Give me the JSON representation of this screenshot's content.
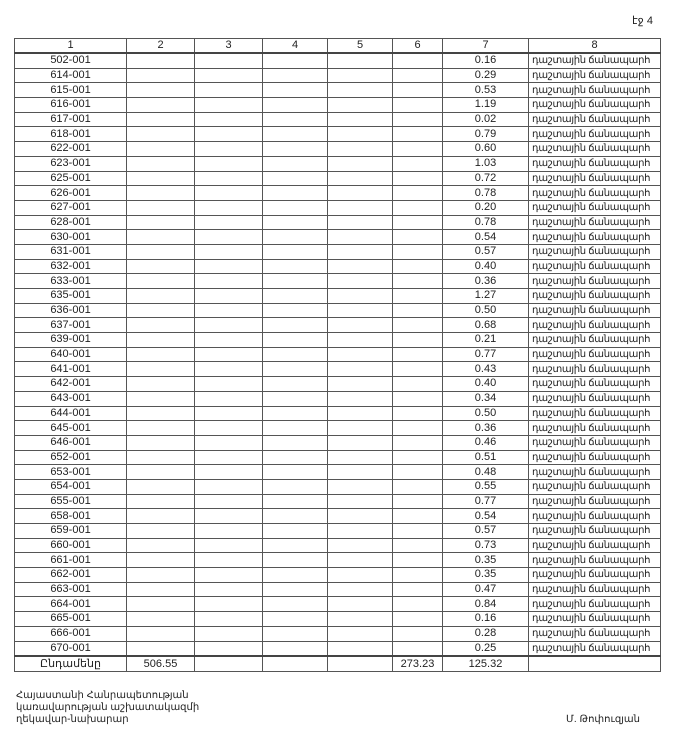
{
  "page_label": "էջ 4",
  "table": {
    "headers": [
      "1",
      "2",
      "3",
      "4",
      "5",
      "6",
      "7",
      "8"
    ],
    "rows": [
      {
        "code": "502-001",
        "area": "0.16",
        "purpose": "դաշտային ճանապարհ"
      },
      {
        "code": "614-001",
        "area": "0.29",
        "purpose": "դաշտային ճանապարհ"
      },
      {
        "code": "615-001",
        "area": "0.53",
        "purpose": "դաշտային ճանապարհ"
      },
      {
        "code": "616-001",
        "area": "1.19",
        "purpose": "դաշտային ճանապարհ"
      },
      {
        "code": "617-001",
        "area": "0.02",
        "purpose": "դաշտային ճանապարհ"
      },
      {
        "code": "618-001",
        "area": "0.79",
        "purpose": "դաշտային ճանապարհ"
      },
      {
        "code": "622-001",
        "area": "0.60",
        "purpose": "դաշտային ճանապարհ"
      },
      {
        "code": "623-001",
        "area": "1.03",
        "purpose": "դաշտային ճանապարհ"
      },
      {
        "code": "625-001",
        "area": "0.72",
        "purpose": "դաշտային ճանապարհ"
      },
      {
        "code": "626-001",
        "area": "0.78",
        "purpose": "դաշտային ճանապարհ"
      },
      {
        "code": "627-001",
        "area": "0.20",
        "purpose": "դաշտային ճանապարհ"
      },
      {
        "code": "628-001",
        "area": "0.78",
        "purpose": "դաշտային ճանապարհ"
      },
      {
        "code": "630-001",
        "area": "0.54",
        "purpose": "դաշտային ճանապարհ"
      },
      {
        "code": "631-001",
        "area": "0.57",
        "purpose": "դաշտային ճանապարհ"
      },
      {
        "code": "632-001",
        "area": "0.40",
        "purpose": "դաշտային ճանապարհ"
      },
      {
        "code": "633-001",
        "area": "0.36",
        "purpose": "դաշտային ճանապարհ"
      },
      {
        "code": "635-001",
        "area": "1.27",
        "purpose": "դաշտային ճանապարհ"
      },
      {
        "code": "636-001",
        "area": "0.50",
        "purpose": "դաշտային ճանապարհ"
      },
      {
        "code": "637-001",
        "area": "0.68",
        "purpose": "դաշտային ճանապարհ"
      },
      {
        "code": "639-001",
        "area": "0.21",
        "purpose": "դաշտային ճանապարհ"
      },
      {
        "code": "640-001",
        "area": "0.77",
        "purpose": "դաշտային ճանապարհ"
      },
      {
        "code": "641-001",
        "area": "0.43",
        "purpose": "դաշտային ճանապարհ"
      },
      {
        "code": "642-001",
        "area": "0.40",
        "purpose": "դաշտային ճանապարհ"
      },
      {
        "code": "643-001",
        "area": "0.34",
        "purpose": "դաշտային ճանապարհ"
      },
      {
        "code": "644-001",
        "area": "0.50",
        "purpose": "դաշտային ճանապարհ"
      },
      {
        "code": "645-001",
        "area": "0.36",
        "purpose": "դաշտային ճանապարհ"
      },
      {
        "code": "646-001",
        "area": "0.46",
        "purpose": "դաշտային ճանապարհ"
      },
      {
        "code": "652-001",
        "area": "0.51",
        "purpose": "դաշտային ճանապարհ"
      },
      {
        "code": "653-001",
        "area": "0.48",
        "purpose": "դաշտային ճանապարհ"
      },
      {
        "code": "654-001",
        "area": "0.55",
        "purpose": "դաշտային ճանապարհ"
      },
      {
        "code": "655-001",
        "area": "0.77",
        "purpose": "դաշտային ճանապարհ"
      },
      {
        "code": "658-001",
        "area": "0.54",
        "purpose": "դաշտային ճանապարհ"
      },
      {
        "code": "659-001",
        "area": "0.57",
        "purpose": "դաշտային ճանապարհ"
      },
      {
        "code": "660-001",
        "area": "0.73",
        "purpose": "դաշտային ճանապարհ"
      },
      {
        "code": "661-001",
        "area": "0.35",
        "purpose": "դաշտային ճանապարհ"
      },
      {
        "code": "662-001",
        "area": "0.35",
        "purpose": "դաշտային ճանապարհ"
      },
      {
        "code": "663-001",
        "area": "0.47",
        "purpose": "դաշտային ճանապարհ"
      },
      {
        "code": "664-001",
        "area": "0.84",
        "purpose": "դաշտային ճանապարհ"
      },
      {
        "code": "665-001",
        "area": "0.16",
        "purpose": "դաշտային ճանապարհ"
      },
      {
        "code": "666-001",
        "area": "0.28",
        "purpose": "դաշտային ճանապարհ"
      },
      {
        "code": "670-001",
        "area": "0.25",
        "purpose": "դաշտային ճանապարհ"
      }
    ],
    "total": {
      "label": "Ընդամենը",
      "col2": "506.55",
      "col6": "273.23",
      "col7": "125.32"
    }
  },
  "footer": {
    "lines": [
      "Հայաստանի Հանրապետության",
      "կառավարության աշխատակազմի",
      "ղեկավար-նախարար"
    ],
    "signer": "Մ. Թոփուզյան"
  }
}
